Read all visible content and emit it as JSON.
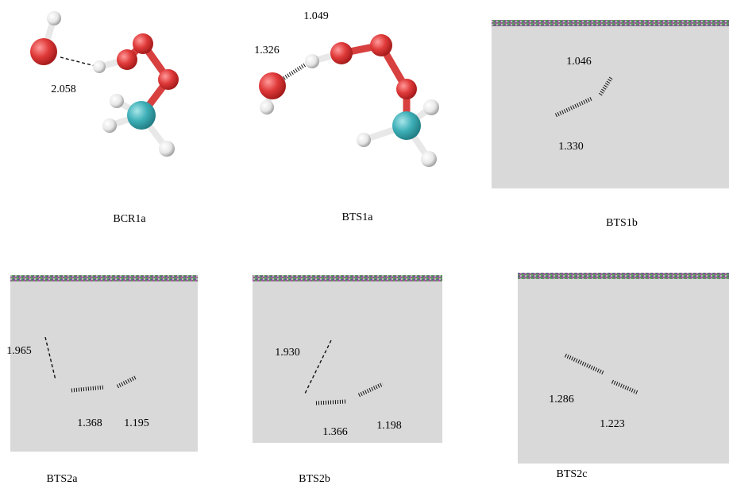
{
  "panels": [
    {
      "label": "BCR1a",
      "distances": [
        "2.058"
      ]
    },
    {
      "label": "BTS1a",
      "distances": [
        "1.049",
        "1.326"
      ]
    },
    {
      "label": "BTS1b",
      "distances": [
        "1.046",
        "1.330"
      ]
    },
    {
      "label": "BTS2a",
      "distances": [
        "1.965",
        "1.368",
        "1.195"
      ]
    },
    {
      "label": "BTS2b",
      "distances": [
        "1.930",
        "1.366",
        "1.198"
      ]
    },
    {
      "label": "BTS2c",
      "distances": [
        "1.286",
        "1.223"
      ]
    }
  ]
}
